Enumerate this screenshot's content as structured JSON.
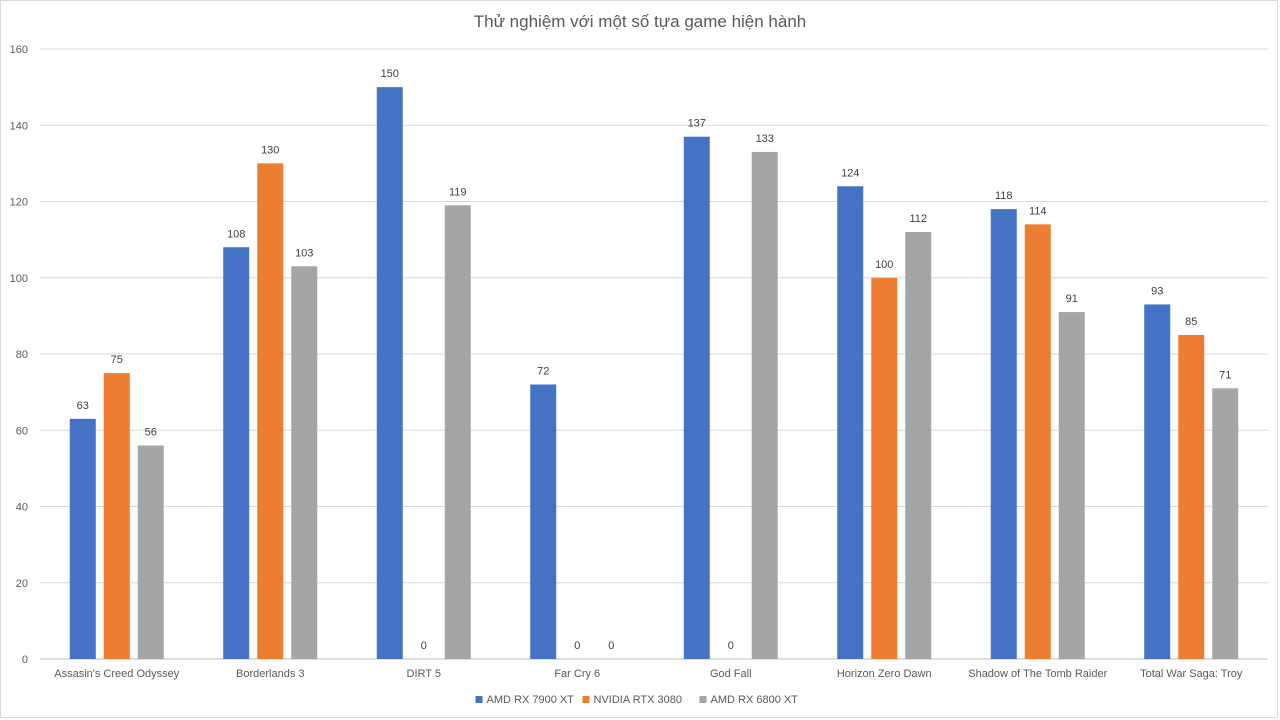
{
  "chart_data": {
    "type": "bar",
    "title": "Thử nghiệm với một số tựa game hiện hành",
    "xlabel": "",
    "ylabel": "",
    "ylim": [
      0,
      160
    ],
    "yticks": [
      0,
      20,
      40,
      60,
      80,
      100,
      120,
      140,
      160
    ],
    "grid": true,
    "legend_position": "bottom",
    "categories": [
      "Assasin's Creed Odyssey",
      "Borderlands 3",
      "DIRT 5",
      "Far Cry 6",
      "God Fall",
      "Horizon Zero Dawn",
      "Shadow of The Tomb Raider",
      "Total War Saga: Troy"
    ],
    "series": [
      {
        "name": "AMD RX 7900 XT",
        "color": "#4472c4",
        "values": [
          63,
          108,
          150,
          72,
          137,
          124,
          118,
          93
        ]
      },
      {
        "name": "NVIDIA RTX 3080",
        "color": "#ed7d31",
        "values": [
          75,
          130,
          0,
          0,
          0,
          100,
          114,
          85
        ]
      },
      {
        "name": "AMD RX 6800 XT",
        "color": "#a5a5a5",
        "values": [
          56,
          103,
          119,
          0,
          133,
          112,
          91,
          71
        ]
      }
    ]
  }
}
